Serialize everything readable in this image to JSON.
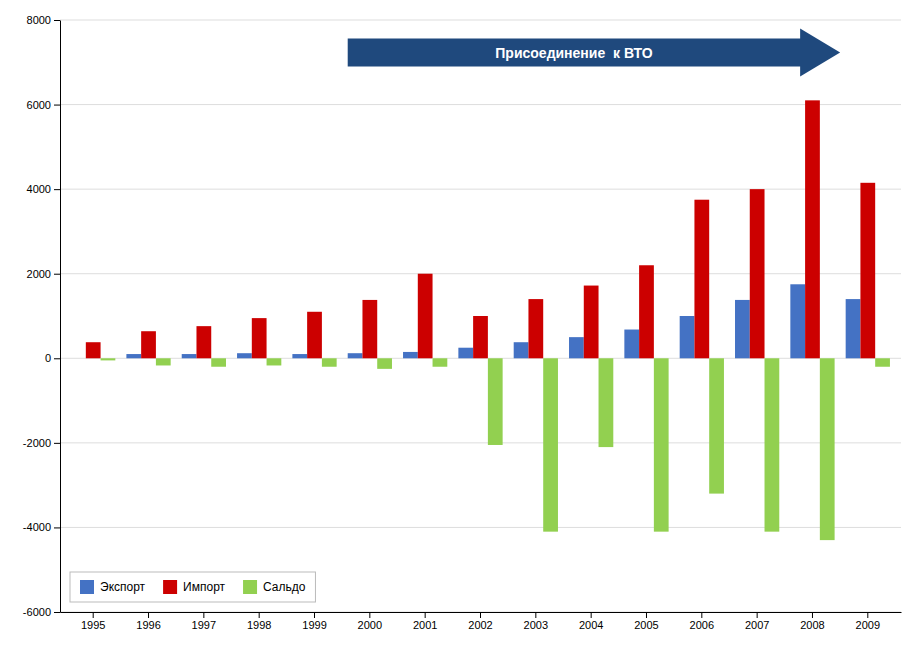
{
  "chart_data": {
    "type": "bar",
    "categories": [
      "1995",
      "1996",
      "1997",
      "1998",
      "1999",
      "2000",
      "2001",
      "2002",
      "2003",
      "2004",
      "2005",
      "2006",
      "2007",
      "2008",
      "2009"
    ],
    "series": [
      {
        "name": "Экспорт",
        "color": "#4472C4",
        "values": [
          0,
          100,
          100,
          120,
          100,
          120,
          150,
          250,
          380,
          500,
          680,
          1000,
          1380,
          1750,
          1400
        ]
      },
      {
        "name": "Импорт",
        "color": "#CC0000",
        "values": [
          380,
          640,
          760,
          950,
          1100,
          1380,
          2000,
          1000,
          1400,
          1720,
          2200,
          3750,
          4000,
          6100,
          4150
        ]
      },
      {
        "name": "Сальдо",
        "color": "#92D050",
        "values": [
          -50,
          -170,
          -200,
          -170,
          -200,
          -250,
          -200,
          -2050,
          -4100,
          -2100,
          -4100,
          -3200,
          -4100,
          -4300,
          -200
        ]
      }
    ],
    "ylim": [
      -6000,
      8000
    ],
    "yticks": [
      -6000,
      -4000,
      -2000,
      0,
      2000,
      4000,
      6000,
      8000
    ],
    "grid": true,
    "legend": "lower left",
    "annotations": [
      {
        "text": "Присоединение  к ВТО",
        "color": "#1F497D"
      }
    ]
  }
}
